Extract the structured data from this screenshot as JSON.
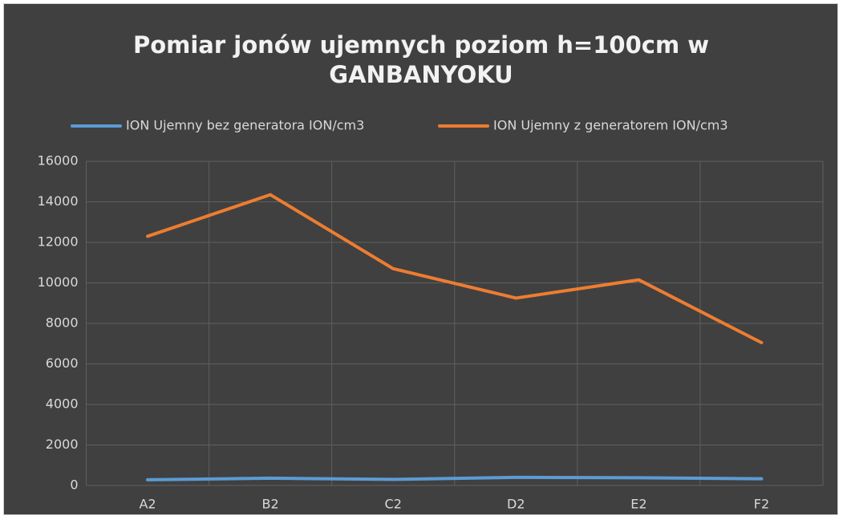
{
  "chart_data": {
    "type": "line",
    "title": "Pomiar jonów ujemnych poziom h=100cm w GANBANYOKU",
    "categories": [
      "A2",
      "B2",
      "C2",
      "D2",
      "E2",
      "F2"
    ],
    "series": [
      {
        "name": "ION Ujemny bez generatora ION/cm3",
        "color": "#5b9bd5",
        "values": [
          280,
          360,
          300,
          400,
          380,
          330
        ]
      },
      {
        "name": "ION Ujemny z generatorem ION/cm3",
        "color": "#ed7d31",
        "values": [
          12300,
          14350,
          10700,
          9250,
          10150,
          7050
        ]
      }
    ],
    "ylim": [
      0,
      16000
    ],
    "yticks": [
      0,
      2000,
      4000,
      6000,
      8000,
      10000,
      12000,
      14000,
      16000
    ],
    "grid": true,
    "legend": "top"
  }
}
